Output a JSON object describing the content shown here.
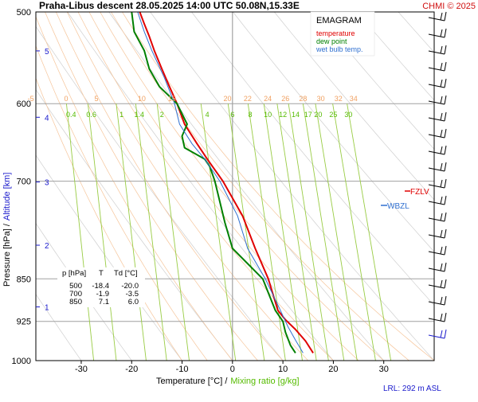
{
  "header": {
    "title": "Praha-Libus   descent   28.05.2025 14:00 UTC   50.08N,15.33E",
    "copyright": "CHMI © 2025"
  },
  "axes": {
    "ylabel_pressure": "Pressure [hPa]  /",
    "ylabel_altitude": "Altitude [km]",
    "xlabel_temperature": "Temperature [°C]  /",
    "xlabel_mixing": "Mixing ratio [g/kg]",
    "lrl": "LRL: 292 m ASL"
  },
  "legend": {
    "title": "EMAGRAM",
    "items": [
      {
        "label": "temperature",
        "color": "#e00000"
      },
      {
        "label": "dew point",
        "color": "#008000"
      },
      {
        "label": "wet bulb temp.",
        "color": "#3070d0"
      }
    ]
  },
  "levels": {
    "fzlv": "FZLV",
    "wbzl": "WBZL"
  },
  "table": {
    "headers": [
      "p [hPa]",
      "T",
      "Td [°C]"
    ],
    "rows": [
      [
        "500",
        "-18.4",
        "-20.0"
      ],
      [
        "700",
        "-1.9",
        "-3.5"
      ],
      [
        "850",
        "7.1",
        "6.0"
      ]
    ]
  },
  "chart_data": {
    "type": "line",
    "title": "EMAGRAM",
    "xlabel": "Temperature [°C]",
    "ylabel": "Pressure [hPa]",
    "xlim": [
      -39,
      40
    ],
    "ylim": [
      1000,
      500
    ],
    "y_scale": "log",
    "pressure_ticks": [
      "500",
      "600",
      "700",
      "850",
      "925",
      "1000"
    ],
    "temperature_ticks": [
      "-30",
      "-20",
      "-10",
      "0",
      "10",
      "20",
      "30"
    ],
    "altitude_ticks": [
      "1",
      "2",
      "3",
      "4",
      "5"
    ],
    "mixing_ratio_labels": [
      "0.4",
      "0.6",
      "1",
      "1.4",
      "2",
      "4",
      "6",
      "8",
      "10",
      "12",
      "14",
      "17",
      "20",
      "25",
      "30"
    ],
    "isotherm_labels": [
      "-5",
      "0",
      "5",
      "10",
      "15",
      "20",
      "22",
      "24",
      "26",
      "28",
      "30",
      "32",
      "34"
    ],
    "series": [
      {
        "name": "temperature",
        "color": "#e00000",
        "points": [
          [
            16.0,
            985
          ],
          [
            14.5,
            962
          ],
          [
            12.5,
            940
          ],
          [
            10.5,
            922
          ],
          [
            9.0,
            905
          ],
          [
            7.1,
            850
          ],
          [
            4.5,
            800
          ],
          [
            2.0,
            750
          ],
          [
            -1.9,
            700
          ],
          [
            -5.0,
            670
          ],
          [
            -7.0,
            650
          ],
          [
            -9.5,
            625
          ],
          [
            -11.0,
            600
          ],
          [
            -12.5,
            580
          ],
          [
            -14.0,
            560
          ],
          [
            -15.5,
            540
          ],
          [
            -16.5,
            525
          ],
          [
            -17.5,
            512
          ],
          [
            -18.4,
            500
          ]
        ]
      },
      {
        "name": "dew point",
        "color": "#008000",
        "points": [
          [
            12.5,
            985
          ],
          [
            11.5,
            970
          ],
          [
            10.5,
            945
          ],
          [
            10.0,
            925
          ],
          [
            8.5,
            905
          ],
          [
            6.0,
            850
          ],
          [
            0.0,
            800
          ],
          [
            -1.5,
            760
          ],
          [
            -3.5,
            700
          ],
          [
            -4.5,
            680
          ],
          [
            -5.5,
            670
          ],
          [
            -9.5,
            655
          ],
          [
            -10.0,
            640
          ],
          [
            -9.0,
            625
          ],
          [
            -11.0,
            600
          ],
          [
            -14.5,
            580
          ],
          [
            -16.5,
            560
          ],
          [
            -17.5,
            540
          ],
          [
            -19.5,
            520
          ],
          [
            -20.0,
            500
          ]
        ]
      },
      {
        "name": "wet bulb temp.",
        "color": "#3070d0",
        "points": [
          [
            14.0,
            985
          ],
          [
            12.5,
            960
          ],
          [
            11.0,
            935
          ],
          [
            9.5,
            905
          ],
          [
            6.5,
            850
          ],
          [
            3.0,
            800
          ],
          [
            1.0,
            750
          ],
          [
            -2.5,
            700
          ],
          [
            -5.5,
            670
          ],
          [
            -8.0,
            650
          ],
          [
            -10.5,
            625
          ],
          [
            -11.5,
            600
          ],
          [
            -13.5,
            570
          ],
          [
            -16.0,
            540
          ],
          [
            -17.5,
            520
          ],
          [
            -18.8,
            500
          ]
        ]
      }
    ]
  }
}
